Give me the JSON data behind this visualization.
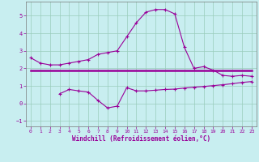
{
  "xlabel": "Windchill (Refroidissement éolien,°C)",
  "background_color": "#c8eef0",
  "grid_color": "#99ccbb",
  "line_color": "#990099",
  "hours": [
    0,
    1,
    2,
    3,
    4,
    5,
    6,
    7,
    8,
    9,
    10,
    11,
    12,
    13,
    14,
    15,
    16,
    17,
    18,
    19,
    20,
    21,
    22,
    23
  ],
  "series_upper": [
    2.6,
    2.3,
    2.2,
    2.2,
    2.3,
    2.4,
    2.5,
    2.8,
    2.9,
    3.0,
    3.8,
    4.6,
    5.2,
    5.35,
    5.35,
    5.1,
    3.2,
    2.0,
    2.1,
    1.9,
    1.6,
    1.55,
    1.6,
    1.55
  ],
  "series_lower": [
    null,
    null,
    null,
    0.55,
    0.8,
    0.72,
    0.65,
    0.18,
    -0.25,
    -0.15,
    0.9,
    0.72,
    0.72,
    0.76,
    0.8,
    0.82,
    0.88,
    0.93,
    0.97,
    1.02,
    1.07,
    1.13,
    1.2,
    1.25
  ],
  "series_flat": [
    1.9,
    1.9,
    1.9,
    1.9,
    1.9,
    1.9,
    1.9,
    1.9,
    1.9,
    1.9,
    1.9,
    1.9,
    1.9,
    1.9,
    1.9,
    1.9,
    1.9,
    1.9,
    1.9,
    1.9,
    1.9,
    1.9,
    1.9,
    1.9
  ],
  "ylim": [
    -1.3,
    5.8
  ],
  "yticks": [
    -1,
    0,
    1,
    2,
    3,
    4,
    5
  ],
  "xlim": [
    -0.5,
    23.5
  ],
  "xticks": [
    0,
    1,
    2,
    3,
    4,
    5,
    6,
    7,
    8,
    9,
    10,
    11,
    12,
    13,
    14,
    15,
    16,
    17,
    18,
    19,
    20,
    21,
    22,
    23
  ]
}
